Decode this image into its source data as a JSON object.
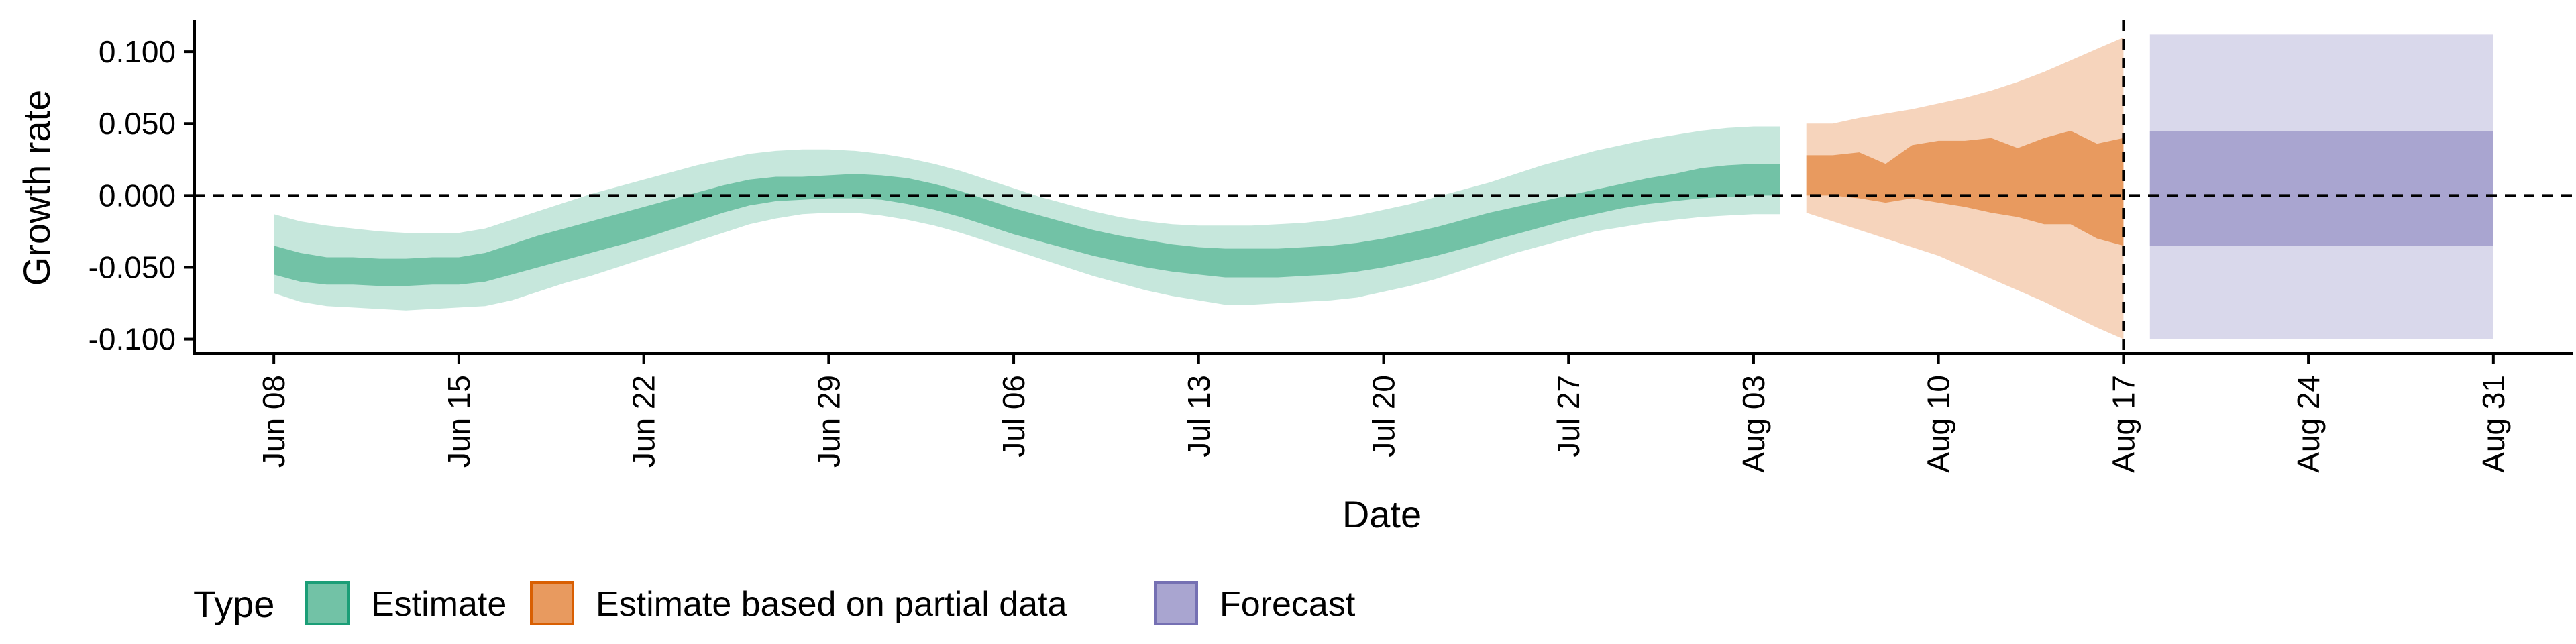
{
  "chart_data": {
    "type": "area",
    "title": "",
    "xlabel": "Date",
    "ylabel": "Growth rate",
    "ylim": [
      -0.11,
      0.122
    ],
    "xlim": [
      "2021-06-05",
      "2021-09-03"
    ],
    "y_ticks": [
      {
        "value": 0.1,
        "label": "0.100"
      },
      {
        "value": 0.05,
        "label": "0.050"
      },
      {
        "value": 0.0,
        "label": "0.000"
      },
      {
        "value": -0.05,
        "label": "-0.050"
      },
      {
        "value": -0.1,
        "label": "-0.100"
      }
    ],
    "x_ticks": [
      {
        "date": "2021-06-08",
        "label": "Jun 08"
      },
      {
        "date": "2021-06-15",
        "label": "Jun 15"
      },
      {
        "date": "2021-06-22",
        "label": "Jun 22"
      },
      {
        "date": "2021-06-29",
        "label": "Jun 29"
      },
      {
        "date": "2021-07-06",
        "label": "Jul 06"
      },
      {
        "date": "2021-07-13",
        "label": "Jul 13"
      },
      {
        "date": "2021-07-20",
        "label": "Jul 20"
      },
      {
        "date": "2021-07-27",
        "label": "Jul 27"
      },
      {
        "date": "2021-08-03",
        "label": "Aug 03"
      },
      {
        "date": "2021-08-10",
        "label": "Aug 10"
      },
      {
        "date": "2021-08-17",
        "label": "Aug 17"
      },
      {
        "date": "2021-08-24",
        "label": "Aug 24"
      },
      {
        "date": "2021-08-31",
        "label": "Aug 31"
      }
    ],
    "reference_lines": {
      "horizontal_y": 0.0,
      "vertical_date": "2021-08-17",
      "style": "dashed"
    },
    "grid": false,
    "legend": {
      "title": "Type",
      "placement": "bottom",
      "entries": [
        "Estimate",
        "Estimate based on partial data",
        "Forecast"
      ]
    },
    "series": [
      {
        "name": "Estimate",
        "color_outer": "#c6e7dc",
        "color_inner": "#72c2a6",
        "legend_border": "#1b9e77",
        "x": [
          "2021-06-08",
          "2021-06-09",
          "2021-06-10",
          "2021-06-11",
          "2021-06-12",
          "2021-06-13",
          "2021-06-14",
          "2021-06-15",
          "2021-06-16",
          "2021-06-17",
          "2021-06-18",
          "2021-06-19",
          "2021-06-20",
          "2021-06-21",
          "2021-06-22",
          "2021-06-23",
          "2021-06-24",
          "2021-06-25",
          "2021-06-26",
          "2021-06-27",
          "2021-06-28",
          "2021-06-29",
          "2021-06-30",
          "2021-07-01",
          "2021-07-02",
          "2021-07-03",
          "2021-07-04",
          "2021-07-05",
          "2021-07-06",
          "2021-07-07",
          "2021-07-08",
          "2021-07-09",
          "2021-07-10",
          "2021-07-11",
          "2021-07-12",
          "2021-07-13",
          "2021-07-14",
          "2021-07-15",
          "2021-07-16",
          "2021-07-17",
          "2021-07-18",
          "2021-07-19",
          "2021-07-20",
          "2021-07-21",
          "2021-07-22",
          "2021-07-23",
          "2021-07-24",
          "2021-07-25",
          "2021-07-26",
          "2021-07-27",
          "2021-07-28",
          "2021-07-29",
          "2021-07-30",
          "2021-07-31",
          "2021-08-01",
          "2021-08-02",
          "2021-08-03",
          "2021-08-04"
        ],
        "outer_low": [
          -0.068,
          -0.074,
          -0.077,
          -0.078,
          -0.079,
          -0.08,
          -0.079,
          -0.078,
          -0.077,
          -0.073,
          -0.067,
          -0.061,
          -0.056,
          -0.05,
          -0.044,
          -0.038,
          -0.032,
          -0.026,
          -0.02,
          -0.016,
          -0.013,
          -0.012,
          -0.012,
          -0.014,
          -0.017,
          -0.021,
          -0.026,
          -0.032,
          -0.038,
          -0.044,
          -0.05,
          -0.056,
          -0.061,
          -0.066,
          -0.07,
          -0.073,
          -0.076,
          -0.076,
          -0.075,
          -0.074,
          -0.073,
          -0.071,
          -0.067,
          -0.063,
          -0.058,
          -0.052,
          -0.046,
          -0.04,
          -0.035,
          -0.03,
          -0.025,
          -0.022,
          -0.019,
          -0.017,
          -0.015,
          -0.014,
          -0.013,
          -0.013
        ],
        "inner_low": [
          -0.055,
          -0.06,
          -0.062,
          -0.062,
          -0.063,
          -0.063,
          -0.062,
          -0.062,
          -0.06,
          -0.055,
          -0.05,
          -0.045,
          -0.04,
          -0.035,
          -0.03,
          -0.024,
          -0.018,
          -0.012,
          -0.007,
          -0.004,
          -0.003,
          -0.002,
          -0.002,
          -0.003,
          -0.006,
          -0.01,
          -0.015,
          -0.021,
          -0.027,
          -0.032,
          -0.037,
          -0.042,
          -0.046,
          -0.05,
          -0.053,
          -0.055,
          -0.057,
          -0.057,
          -0.057,
          -0.056,
          -0.055,
          -0.053,
          -0.05,
          -0.046,
          -0.042,
          -0.037,
          -0.032,
          -0.027,
          -0.022,
          -0.017,
          -0.013,
          -0.009,
          -0.006,
          -0.004,
          -0.002,
          -0.001,
          0.0,
          0.0
        ],
        "inner_high": [
          -0.035,
          -0.04,
          -0.043,
          -0.043,
          -0.044,
          -0.044,
          -0.043,
          -0.043,
          -0.04,
          -0.034,
          -0.028,
          -0.023,
          -0.018,
          -0.013,
          -0.008,
          -0.003,
          0.002,
          0.007,
          0.011,
          0.013,
          0.013,
          0.014,
          0.015,
          0.014,
          0.012,
          0.008,
          0.003,
          -0.003,
          -0.009,
          -0.014,
          -0.019,
          -0.024,
          -0.028,
          -0.031,
          -0.034,
          -0.036,
          -0.037,
          -0.037,
          -0.037,
          -0.036,
          -0.035,
          -0.033,
          -0.03,
          -0.026,
          -0.022,
          -0.017,
          -0.012,
          -0.008,
          -0.004,
          0.0,
          0.004,
          0.008,
          0.012,
          0.015,
          0.019,
          0.021,
          0.022,
          0.022
        ],
        "outer_high": [
          -0.013,
          -0.018,
          -0.021,
          -0.023,
          -0.025,
          -0.026,
          -0.026,
          -0.026,
          -0.023,
          -0.017,
          -0.011,
          -0.005,
          0.001,
          0.006,
          0.011,
          0.016,
          0.021,
          0.025,
          0.029,
          0.031,
          0.032,
          0.032,
          0.031,
          0.029,
          0.026,
          0.022,
          0.017,
          0.011,
          0.005,
          -0.001,
          -0.006,
          -0.011,
          -0.015,
          -0.018,
          -0.02,
          -0.021,
          -0.021,
          -0.021,
          -0.02,
          -0.019,
          -0.017,
          -0.014,
          -0.01,
          -0.006,
          -0.001,
          0.004,
          0.009,
          0.015,
          0.021,
          0.026,
          0.031,
          0.035,
          0.039,
          0.042,
          0.045,
          0.047,
          0.048,
          0.048
        ]
      },
      {
        "name": "Estimate based on partial data",
        "color_outer": "#f6d4bc",
        "color_inner": "#e89a5f",
        "legend_border": "#d95f02",
        "x": [
          "2021-08-05",
          "2021-08-06",
          "2021-08-07",
          "2021-08-08",
          "2021-08-09",
          "2021-08-10",
          "2021-08-11",
          "2021-08-12",
          "2021-08-13",
          "2021-08-14",
          "2021-08-15",
          "2021-08-16",
          "2021-08-17"
        ],
        "outer_low": [
          -0.012,
          -0.018,
          -0.024,
          -0.03,
          -0.036,
          -0.042,
          -0.05,
          -0.058,
          -0.066,
          -0.074,
          -0.083,
          -0.092,
          -0.1
        ],
        "inner_low": [
          0.0,
          0.0,
          -0.002,
          -0.005,
          -0.002,
          -0.005,
          -0.008,
          -0.012,
          -0.015,
          -0.02,
          -0.02,
          -0.03,
          -0.035
        ],
        "inner_high": [
          0.028,
          0.028,
          0.03,
          0.022,
          0.035,
          0.038,
          0.038,
          0.04,
          0.033,
          0.04,
          0.045,
          0.036,
          0.04
        ],
        "outer_high": [
          0.05,
          0.05,
          0.054,
          0.057,
          0.06,
          0.064,
          0.068,
          0.073,
          0.079,
          0.086,
          0.094,
          0.102,
          0.11
        ]
      },
      {
        "name": "Forecast",
        "color_outer": "#d9d8eb",
        "color_inner": "#a9a5d0",
        "legend_border": "#7570b3",
        "x": [
          "2021-08-18",
          "2021-08-31"
        ],
        "outer_low": [
          -0.1,
          -0.1
        ],
        "inner_low": [
          -0.035,
          -0.035
        ],
        "inner_high": [
          0.045,
          0.045
        ],
        "outer_high": [
          0.112,
          0.112
        ]
      }
    ]
  }
}
